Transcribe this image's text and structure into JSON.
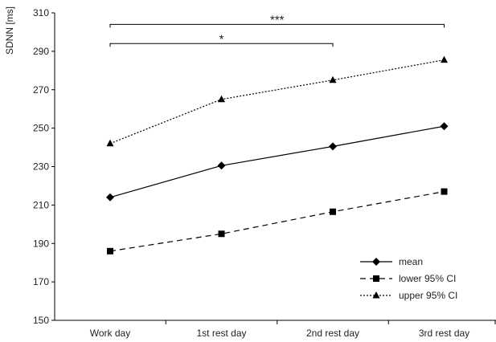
{
  "chart_data": {
    "type": "line",
    "ylabel": "SDNN [ms]",
    "xlabel": "",
    "categories": [
      "Work day",
      "1st rest day",
      "2nd rest day",
      "3rd rest day"
    ],
    "ylim": [
      150,
      310
    ],
    "yticks": [
      150,
      170,
      190,
      210,
      230,
      250,
      270,
      290,
      310
    ],
    "grid": false,
    "legend_position": "bottom-right",
    "series": [
      {
        "name": "mean",
        "values": [
          214,
          230.5,
          240.5,
          251
        ],
        "line_style": "solid",
        "marker": "diamond",
        "color": "#000000"
      },
      {
        "name": "lower 95% CI",
        "values": [
          186,
          195,
          206.5,
          217
        ],
        "line_style": "dashed",
        "marker": "square",
        "color": "#000000"
      },
      {
        "name": "upper 95% CI",
        "values": [
          242,
          265,
          275,
          285.5
        ],
        "line_style": "dotted",
        "marker": "triangle",
        "color": "#000000"
      }
    ],
    "annotations": [
      {
        "label": "***",
        "from": "Work day",
        "to": "3rd rest day",
        "y": 304
      },
      {
        "label": "*",
        "from": "Work day",
        "to": "2nd rest day",
        "y": 294
      }
    ]
  }
}
